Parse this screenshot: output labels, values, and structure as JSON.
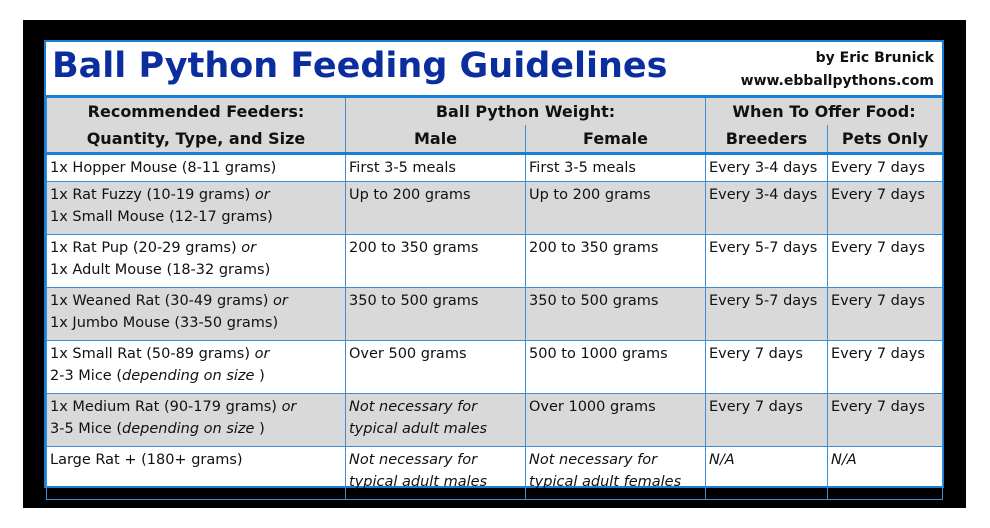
{
  "title": "Ball Python Feeding Guidelines",
  "author": "by Eric Brunick",
  "website": "www.ebballpythons.com",
  "headers": {
    "feeders_line1": "Recommended Feeders:",
    "feeders_line2": "Quantity, Type, and Size",
    "weight": "Ball Python Weight:",
    "male": "Male",
    "female": "Female",
    "when": "When To Offer Food:",
    "breeders": "Breeders",
    "pets": "Pets Only"
  },
  "rows": [
    {
      "feeder": [
        "1x Hopper Mouse (8-11 grams)",
        ""
      ],
      "feeder_or": "",
      "male": [
        "First 3-5 meals",
        ""
      ],
      "female": [
        "First 3-5 meals",
        ""
      ],
      "breeders": "Every 3-4 days",
      "pets": "Every 7 days"
    },
    {
      "feeder": [
        "1x Rat Fuzzy (10-19 grams) ",
        "1x Small Mouse (12-17 grams)"
      ],
      "feeder_or": "or",
      "male": [
        "Up to 200 grams",
        ""
      ],
      "female": [
        "Up to 200 grams",
        ""
      ],
      "breeders": "Every 3-4 days",
      "pets": "Every 7 days"
    },
    {
      "feeder": [
        "1x Rat Pup (20-29 grams) ",
        "1x Adult Mouse (18-32 grams)"
      ],
      "feeder_or": "or",
      "male": [
        "200 to 350 grams",
        ""
      ],
      "female": [
        "200 to 350 grams",
        ""
      ],
      "breeders": "Every 5-7 days",
      "pets": "Every 7 days"
    },
    {
      "feeder": [
        "1x Weaned Rat (30-49 grams) ",
        "1x Jumbo Mouse (33-50 grams)"
      ],
      "feeder_or": "or",
      "male": [
        "350 to 500 grams",
        ""
      ],
      "female": [
        "350 to 500 grams",
        ""
      ],
      "breeders": "Every 5-7 days",
      "pets": "Every 7 days"
    },
    {
      "feeder": [
        "1x Small Rat (50-89 grams) ",
        "2-3 Mice ("
      ],
      "feeder_or": "or",
      "feeder_note": "depending on size",
      "male": [
        "Over 500 grams",
        ""
      ],
      "female": [
        "500 to 1000 grams",
        ""
      ],
      "breeders": "Every 7 days",
      "pets": "Every 7 days"
    },
    {
      "feeder": [
        "1x Medium Rat (90-179 grams) ",
        "3-5 Mice ("
      ],
      "feeder_or": "or",
      "feeder_note": "depending on size",
      "male_italic": [
        "Not necessary for",
        "typical adult males"
      ],
      "female": [
        "Over 1000 grams",
        ""
      ],
      "breeders": "Every 7 days",
      "pets": "Every 7 days"
    },
    {
      "feeder": [
        "Large Rat + (180+ grams)",
        ""
      ],
      "feeder_or": "",
      "male_italic": [
        "Not necessary for",
        "typical adult males"
      ],
      "female_italic": [
        "Not necessary for",
        "typical adult females"
      ],
      "breeders_italic": "N/A",
      "pets_italic": "N/A"
    }
  ],
  "close_paren": " )",
  "colors": {
    "title": "#0b2e9e",
    "border": "#1a7fd4",
    "shade": "#d9d9d9",
    "frame": "#000000"
  }
}
